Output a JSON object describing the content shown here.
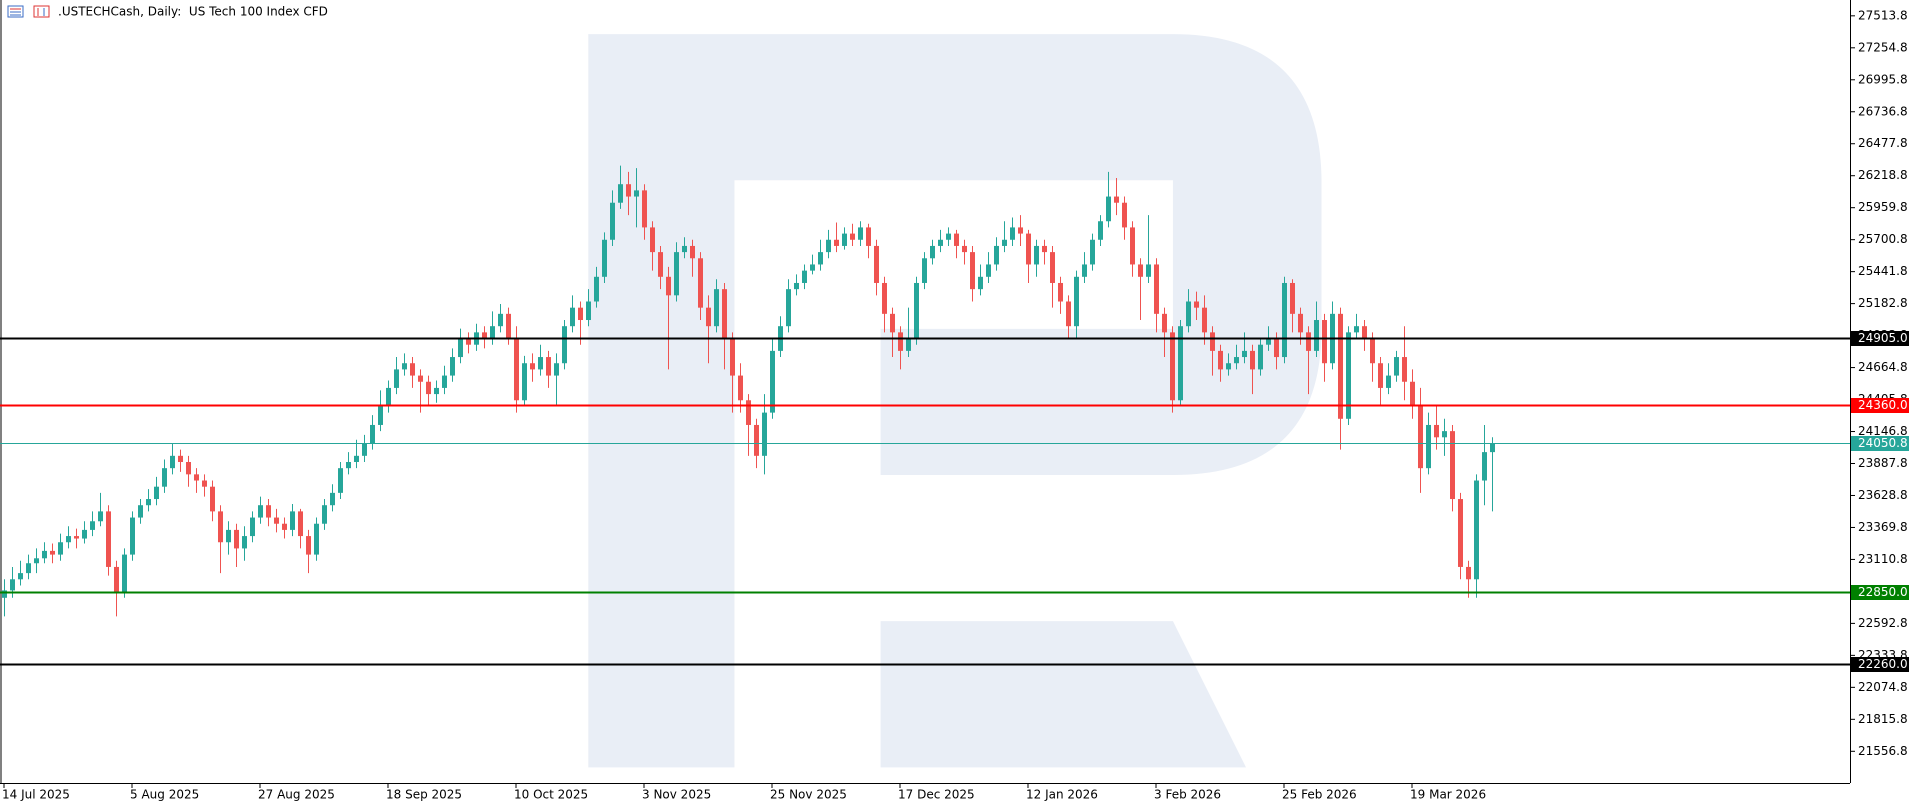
{
  "chart_data": {
    "type": "candlestick",
    "title": ".USTECHCash, Daily:  US Tech 100 Index CFD",
    "up_color": "#26a69a",
    "down_color": "#ef5350",
    "ylim": [
      21300,
      27642
    ],
    "yticks": [
      27513.8,
      27254.8,
      26995.8,
      26736.8,
      26477.8,
      26218.8,
      25959.8,
      25700.8,
      25441.8,
      25182.8,
      24923.8,
      24664.8,
      24405.8,
      24146.8,
      23887.8,
      23628.8,
      23369.8,
      23110.8,
      22851.8,
      22592.8,
      22333.8,
      22074.8,
      21815.8,
      21556.8
    ],
    "levels": [
      {
        "value": 24905,
        "label": "24905.0",
        "color": "#000000"
      },
      {
        "value": 24360,
        "label": "24360.0",
        "color": "#ff0000"
      },
      {
        "value": 24050.8,
        "label": "24050.8",
        "color": "#26a69a"
      },
      {
        "value": 22850,
        "label": "22850.0",
        "color": "#008000"
      },
      {
        "value": 22260,
        "label": "22260.0",
        "color": "#000000"
      }
    ],
    "categories": [
      "14 Jul 2025",
      null,
      null,
      null,
      null,
      null,
      null,
      null,
      null,
      null,
      null,
      null,
      null,
      null,
      null,
      null,
      "5 Aug 2025",
      null,
      null,
      null,
      null,
      null,
      null,
      null,
      null,
      null,
      null,
      null,
      null,
      null,
      null,
      null,
      "27 Aug 2025",
      null,
      null,
      null,
      null,
      null,
      null,
      null,
      null,
      null,
      null,
      null,
      null,
      null,
      null,
      null,
      "18 Sep 2025",
      null,
      null,
      null,
      null,
      null,
      null,
      null,
      null,
      null,
      null,
      null,
      null,
      null,
      null,
      null,
      "10 Oct 2025",
      null,
      null,
      null,
      null,
      null,
      null,
      null,
      null,
      null,
      null,
      null,
      null,
      null,
      null,
      null,
      "3 Nov 2025",
      null,
      null,
      null,
      null,
      null,
      null,
      null,
      null,
      null,
      null,
      null,
      null,
      null,
      null,
      null,
      "25 Nov 2025",
      null,
      null,
      null,
      null,
      null,
      null,
      null,
      null,
      null,
      null,
      null,
      null,
      null,
      null,
      null,
      "17 Dec 2025",
      null,
      null,
      null,
      null,
      null,
      null,
      null,
      null,
      null,
      null,
      null,
      null,
      null,
      null,
      null,
      "12 Jan 2026",
      null,
      null,
      null,
      null,
      null,
      null,
      null,
      null,
      null,
      null,
      null,
      null,
      null,
      null,
      null,
      "3 Feb 2026",
      null,
      null,
      null,
      null,
      null,
      null,
      null,
      null,
      null,
      null,
      null,
      null,
      null,
      null,
      null,
      "25 Feb 2026",
      null,
      null,
      null,
      null,
      null,
      null,
      null,
      null,
      null,
      null,
      null,
      null,
      null,
      null,
      null,
      "19 Mar 2026",
      null,
      null,
      null,
      null,
      null,
      null,
      null,
      null,
      null,
      null
    ],
    "candles": [
      [
        22800,
        22950,
        22650,
        22860
      ],
      [
        22860,
        23050,
        22800,
        22950
      ],
      [
        22950,
        23100,
        22900,
        23000
      ],
      [
        23000,
        23150,
        22950,
        23080
      ],
      [
        23080,
        23200,
        23000,
        23120
      ],
      [
        23120,
        23250,
        23080,
        23180
      ],
      [
        23180,
        23240,
        23080,
        23150
      ],
      [
        23150,
        23320,
        23100,
        23250
      ],
      [
        23250,
        23380,
        23200,
        23300
      ],
      [
        23300,
        23360,
        23200,
        23280
      ],
      [
        23280,
        23420,
        23240,
        23350
      ],
      [
        23350,
        23500,
        23300,
        23420
      ],
      [
        23420,
        23650,
        23380,
        23500
      ],
      [
        23500,
        23550,
        22980,
        23050
      ],
      [
        23050,
        23100,
        22650,
        22850
      ],
      [
        22850,
        23200,
        22800,
        23150
      ],
      [
        23150,
        23500,
        23100,
        23450
      ],
      [
        23450,
        23600,
        23400,
        23550
      ],
      [
        23550,
        23680,
        23500,
        23600
      ],
      [
        23600,
        23780,
        23550,
        23700
      ],
      [
        23700,
        23920,
        23650,
        23850
      ],
      [
        23850,
        24050,
        23800,
        23950
      ],
      [
        23950,
        24000,
        23820,
        23900
      ],
      [
        23900,
        23950,
        23700,
        23800
      ],
      [
        23800,
        23850,
        23650,
        23750
      ],
      [
        23750,
        23800,
        23620,
        23700
      ],
      [
        23700,
        23750,
        23420,
        23500
      ],
      [
        23500,
        23550,
        23000,
        23250
      ],
      [
        23250,
        23420,
        23150,
        23350
      ],
      [
        23350,
        23400,
        23050,
        23200
      ],
      [
        23200,
        23380,
        23100,
        23300
      ],
      [
        23300,
        23500,
        23250,
        23450
      ],
      [
        23450,
        23620,
        23400,
        23550
      ],
      [
        23550,
        23600,
        23380,
        23450
      ],
      [
        23450,
        23520,
        23330,
        23400
      ],
      [
        23400,
        23450,
        23280,
        23350
      ],
      [
        23350,
        23560,
        23300,
        23500
      ],
      [
        23500,
        23520,
        23200,
        23300
      ],
      [
        23300,
        23350,
        23000,
        23150
      ],
      [
        23150,
        23450,
        23100,
        23400
      ],
      [
        23400,
        23600,
        23350,
        23550
      ],
      [
        23550,
        23720,
        23500,
        23650
      ],
      [
        23650,
        23900,
        23600,
        23850
      ],
      [
        23850,
        23980,
        23800,
        23900
      ],
      [
        23900,
        24080,
        23850,
        23950
      ],
      [
        23950,
        24120,
        23900,
        24050
      ],
      [
        24050,
        24280,
        24000,
        24200
      ],
      [
        24200,
        24480,
        24150,
        24350
      ],
      [
        24350,
        24560,
        24300,
        24500
      ],
      [
        24500,
        24750,
        24450,
        24650
      ],
      [
        24650,
        24780,
        24600,
        24700
      ],
      [
        24700,
        24750,
        24500,
        24600
      ],
      [
        24600,
        24650,
        24300,
        24550
      ],
      [
        24550,
        24600,
        24350,
        24450
      ],
      [
        24450,
        24560,
        24380,
        24500
      ],
      [
        24500,
        24680,
        24450,
        24600
      ],
      [
        24600,
        24820,
        24550,
        24750
      ],
      [
        24750,
        24980,
        24700,
        24900
      ],
      [
        24900,
        24950,
        24780,
        24850
      ],
      [
        24850,
        25020,
        24800,
        24950
      ],
      [
        24950,
        25000,
        24820,
        24900
      ],
      [
        24900,
        25120,
        24850,
        25000
      ],
      [
        25000,
        25180,
        24950,
        25100
      ],
      [
        25100,
        25150,
        24850,
        24900
      ],
      [
        24900,
        25000,
        24300,
        24400
      ],
      [
        24400,
        24760,
        24350,
        24700
      ],
      [
        24700,
        24780,
        24550,
        24650
      ],
      [
        24650,
        24850,
        24600,
        24750
      ],
      [
        24750,
        24800,
        24500,
        24600
      ],
      [
        24600,
        24780,
        24350,
        24700
      ],
      [
        24700,
        25050,
        24650,
        25000
      ],
      [
        25000,
        25250,
        24950,
        25150
      ],
      [
        25150,
        25200,
        24850,
        25050
      ],
      [
        25050,
        25300,
        25000,
        25200
      ],
      [
        25200,
        25480,
        25150,
        25400
      ],
      [
        25400,
        25760,
        25350,
        25700
      ],
      [
        25700,
        26100,
        25650,
        26000
      ],
      [
        26000,
        26300,
        25950,
        26150
      ],
      [
        26150,
        26250,
        25900,
        26050
      ],
      [
        26050,
        26280,
        25800,
        26100
      ],
      [
        26100,
        26150,
        25700,
        25800
      ],
      [
        25800,
        25850,
        25450,
        25600
      ],
      [
        25600,
        25650,
        25300,
        25400
      ],
      [
        25400,
        25480,
        24650,
        25250
      ],
      [
        25250,
        25680,
        25200,
        25600
      ],
      [
        25600,
        25720,
        25550,
        25650
      ],
      [
        25650,
        25700,
        25400,
        25550
      ],
      [
        25550,
        25600,
        25050,
        25150
      ],
      [
        25150,
        25250,
        24700,
        25000
      ],
      [
        25000,
        25380,
        24950,
        25300
      ],
      [
        25300,
        25350,
        24650,
        24900
      ],
      [
        24900,
        24950,
        24300,
        24600
      ],
      [
        24600,
        24700,
        24300,
        24400
      ],
      [
        24400,
        24450,
        23950,
        24200
      ],
      [
        24200,
        24250,
        23850,
        23950
      ],
      [
        23950,
        24450,
        23800,
        24300
      ],
      [
        24300,
        24900,
        24250,
        24800
      ],
      [
        24800,
        25080,
        24750,
        25000
      ],
      [
        25000,
        25380,
        24950,
        25300
      ],
      [
        25300,
        25420,
        25250,
        25350
      ],
      [
        25350,
        25500,
        25300,
        25450
      ],
      [
        25450,
        25580,
        25420,
        25500
      ],
      [
        25500,
        25700,
        25450,
        25600
      ],
      [
        25600,
        25780,
        25550,
        25700
      ],
      [
        25700,
        25840,
        25600,
        25650
      ],
      [
        25650,
        25800,
        25620,
        25750
      ],
      [
        25750,
        25830,
        25650,
        25700
      ],
      [
        25700,
        25850,
        25650,
        25800
      ],
      [
        25800,
        25830,
        25550,
        25650
      ],
      [
        25650,
        25700,
        25250,
        25350
      ],
      [
        25350,
        25400,
        24950,
        25100
      ],
      [
        25100,
        25150,
        24750,
        24950
      ],
      [
        24950,
        25000,
        24650,
        24800
      ],
      [
        24800,
        25150,
        24750,
        24900
      ],
      [
        24900,
        25400,
        24850,
        25350
      ],
      [
        25350,
        25600,
        25300,
        25550
      ],
      [
        25550,
        25700,
        25500,
        25650
      ],
      [
        25650,
        25780,
        25600,
        25700
      ],
      [
        25700,
        25800,
        25650,
        25750
      ],
      [
        25750,
        25780,
        25550,
        25650
      ],
      [
        25650,
        25700,
        25500,
        25600
      ],
      [
        25600,
        25650,
        25200,
        25300
      ],
      [
        25300,
        25500,
        25250,
        25400
      ],
      [
        25400,
        25600,
        25350,
        25500
      ],
      [
        25500,
        25720,
        25450,
        25650
      ],
      [
        25650,
        25850,
        25600,
        25700
      ],
      [
        25700,
        25880,
        25650,
        25800
      ],
      [
        25800,
        25900,
        25650,
        25750
      ],
      [
        25750,
        25780,
        25350,
        25500
      ],
      [
        25500,
        25700,
        25400,
        25650
      ],
      [
        25650,
        25700,
        25500,
        25600
      ],
      [
        25600,
        25650,
        25150,
        25350
      ],
      [
        25350,
        25400,
        25100,
        25200
      ],
      [
        25200,
        25250,
        24900,
        25000
      ],
      [
        25000,
        25450,
        24900,
        25400
      ],
      [
        25400,
        25600,
        25350,
        25500
      ],
      [
        25500,
        25750,
        25450,
        25700
      ],
      [
        25700,
        25900,
        25650,
        25850
      ],
      [
        25850,
        26250,
        25800,
        26050
      ],
      [
        26050,
        26200,
        25900,
        26000
      ],
      [
        26000,
        26050,
        25700,
        25800
      ],
      [
        25800,
        25850,
        25400,
        25500
      ],
      [
        25500,
        25550,
        25050,
        25400
      ],
      [
        25400,
        25900,
        25350,
        25500
      ],
      [
        25500,
        25550,
        24950,
        25100
      ],
      [
        25100,
        25150,
        24750,
        24950
      ],
      [
        24950,
        25000,
        24300,
        24400
      ],
      [
        24400,
        25050,
        24350,
        25000
      ],
      [
        25000,
        25300,
        24950,
        25200
      ],
      [
        25200,
        25280,
        25050,
        25150
      ],
      [
        25150,
        25250,
        24850,
        24950
      ],
      [
        24950,
        25000,
        24600,
        24800
      ],
      [
        24800,
        24850,
        24550,
        24650
      ],
      [
        24650,
        24780,
        24600,
        24700
      ],
      [
        24700,
        24850,
        24650,
        24750
      ],
      [
        24750,
        24950,
        24700,
        24800
      ],
      [
        24800,
        24850,
        24450,
        24650
      ],
      [
        24650,
        24900,
        24600,
        24850
      ],
      [
        24850,
        25000,
        24800,
        24900
      ],
      [
        24900,
        24950,
        24650,
        24750
      ],
      [
        24750,
        25400,
        24700,
        25350
      ],
      [
        25350,
        25380,
        24950,
        25100
      ],
      [
        25100,
        25150,
        24850,
        24950
      ],
      [
        24950,
        25000,
        24450,
        24800
      ],
      [
        24800,
        25200,
        24750,
        25050
      ],
      [
        25050,
        25100,
        24550,
        24700
      ],
      [
        24700,
        25200,
        24650,
        25100
      ],
      [
        25100,
        25150,
        24000,
        24250
      ],
      [
        24250,
        25000,
        24200,
        24950
      ],
      [
        24950,
        25100,
        24900,
        25000
      ],
      [
        25000,
        25050,
        24800,
        24900
      ],
      [
        24900,
        24950,
        24550,
        24700
      ],
      [
        24700,
        24750,
        24350,
        24500
      ],
      [
        24500,
        24700,
        24450,
        24600
      ],
      [
        24600,
        24800,
        24550,
        24750
      ],
      [
        24750,
        25000,
        24400,
        24550
      ],
      [
        24550,
        24650,
        24250,
        24350
      ],
      [
        24350,
        24500,
        23650,
        23850
      ],
      [
        23850,
        24300,
        23800,
        24200
      ],
      [
        24200,
        24350,
        24000,
        24100
      ],
      [
        24100,
        24250,
        23950,
        24150
      ],
      [
        24150,
        24200,
        23500,
        23600
      ],
      [
        23600,
        23650,
        22950,
        23050
      ],
      [
        23050,
        23100,
        22800,
        22950
      ],
      [
        22950,
        23800,
        22800,
        23750
      ],
      [
        23750,
        24200,
        23550,
        23980
      ],
      [
        23980,
        24100,
        23500,
        24050.8
      ]
    ]
  }
}
